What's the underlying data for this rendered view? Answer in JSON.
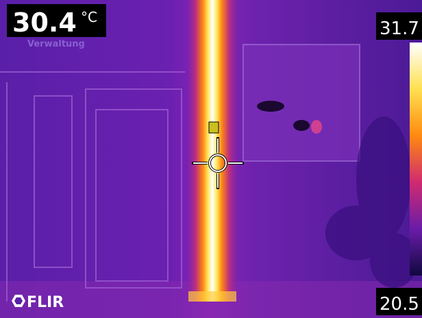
{
  "measurement": {
    "value": 30.4,
    "unit": "°C"
  },
  "label": "Verwaltung",
  "scale": {
    "max": 31.7,
    "min": 20.5
  },
  "logo": "FLIR"
}
